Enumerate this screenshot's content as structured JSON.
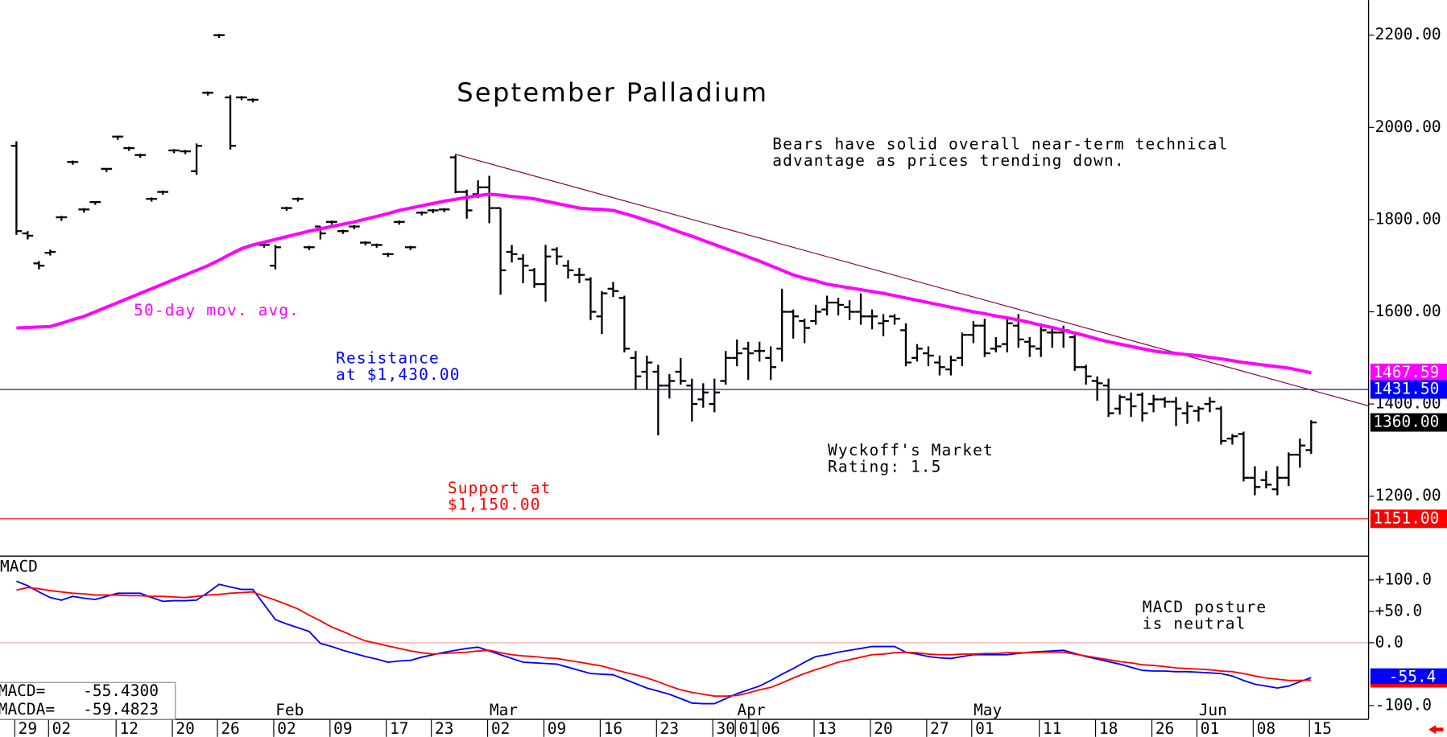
{
  "chart_data": {
    "type": "ohlc",
    "title": "September Palladium",
    "color": "#000000",
    "categories": [
      null,
      "29",
      null,
      null,
      "02",
      null,
      null,
      null,
      null,
      null,
      "12",
      null,
      null,
      null,
      null,
      "20",
      null,
      null,
      null,
      "26",
      null,
      null,
      null,
      null,
      "02",
      null,
      null,
      null,
      null,
      "09",
      null,
      null,
      null,
      null,
      "17",
      null,
      null,
      null,
      "23",
      null,
      null,
      null,
      null,
      "02",
      null,
      null,
      null,
      null,
      "09",
      null,
      null,
      null,
      null,
      "16",
      null,
      null,
      null,
      null,
      "23",
      null,
      null,
      null,
      null,
      "30",
      null,
      "01",
      null,
      "06",
      null,
      null,
      null,
      null,
      "13",
      null,
      null,
      null,
      null,
      "20",
      null,
      null,
      null,
      null,
      "27",
      null,
      null,
      null,
      "01",
      null,
      null,
      null,
      null,
      null,
      "11",
      null,
      null,
      null,
      null,
      "18",
      null,
      null,
      null,
      null,
      "26",
      null,
      null,
      null,
      "01",
      null,
      null,
      null,
      null,
      "08",
      null,
      null,
      null,
      null,
      "15"
    ],
    "months": [
      null,
      null,
      null,
      null,
      null,
      null,
      null,
      null,
      null,
      null,
      null,
      null,
      null,
      null,
      null,
      null,
      null,
      null,
      null,
      null,
      null,
      null,
      null,
      null,
      "Feb",
      null,
      null,
      null,
      null,
      null,
      null,
      null,
      null,
      null,
      null,
      null,
      null,
      null,
      null,
      null,
      null,
      null,
      null,
      "Mar",
      null,
      null,
      null,
      null,
      null,
      null,
      null,
      null,
      null,
      null,
      null,
      null,
      null,
      null,
      null,
      null,
      null,
      null,
      null,
      null,
      null,
      "Apr",
      null,
      null,
      null,
      null,
      null,
      null,
      null,
      null,
      null,
      null,
      null,
      null,
      null,
      null,
      null,
      null,
      null,
      null,
      null,
      null,
      "May",
      null,
      null,
      null,
      null,
      null,
      null,
      null,
      null,
      null,
      null,
      null,
      null,
      null,
      null,
      null,
      null,
      null,
      null,
      null,
      "Jun",
      null,
      null,
      null,
      null,
      null,
      null,
      null,
      null,
      null,
      null,
      null
    ],
    "open": [
      1960,
      1770,
      1705,
      1728,
      1805,
      1925,
      1822,
      1838,
      1910,
      1980,
      1955,
      1940,
      1845,
      1860,
      1950,
      1948,
      1905,
      2075,
      2200,
      2065,
      2065,
      2060,
      1745,
      1700,
      1825,
      1845,
      1740,
      1785,
      1795,
      1775,
      1785,
      1750,
      1745,
      1725,
      1795,
      1740,
      1815,
      1820,
      1822,
      1935,
      1860,
      1855,
      1870,
      1825,
      1730,
      1715,
      1690,
      1660,
      1735,
      1700,
      1680,
      1670,
      1590,
      1650,
      1630,
      1500,
      1470,
      1470,
      1440,
      1470,
      1440,
      1410,
      1400,
      1450,
      1500,
      1520,
      1515,
      1500,
      1520,
      1600,
      1580,
      1580,
      1605,
      1620,
      1610,
      1600,
      1590,
      1575,
      1590,
      1560,
      1500,
      1510,
      1490,
      1475,
      1500,
      1550,
      1570,
      1520,
      1530,
      1570,
      1535,
      1520,
      1555,
      1555,
      1545,
      1480,
      1450,
      1440,
      1390,
      1410,
      1420,
      1400,
      1410,
      1405,
      1380,
      1385,
      1400,
      1390,
      1325,
      1335,
      1240,
      1235,
      1215,
      1240,
      1290,
      1300,
      null
    ],
    "high": [
      1970,
      1775,
      1710,
      1735,
      1808,
      1928,
      1825,
      1840,
      1912,
      1982,
      1958,
      1943,
      1848,
      1863,
      1953,
      1951,
      1965,
      2078,
      2203,
      2070,
      2068,
      2063,
      1748,
      1745,
      1828,
      1848,
      1743,
      1785,
      1798,
      1778,
      1788,
      1753,
      1748,
      1728,
      1798,
      1743,
      1818,
      1823,
      1825,
      1940,
      1865,
      1885,
      1895,
      1825,
      1745,
      1725,
      1695,
      1745,
      1740,
      1712,
      1695,
      1675,
      1645,
      1665,
      1635,
      1515,
      1505,
      1485,
      1465,
      1500,
      1455,
      1445,
      1455,
      1515,
      1540,
      1535,
      1535,
      1525,
      1650,
      1605,
      1585,
      1615,
      1635,
      1630,
      1625,
      1640,
      1605,
      1595,
      1595,
      1575,
      1530,
      1525,
      1505,
      1505,
      1555,
      1580,
      1585,
      1545,
      1585,
      1595,
      1545,
      1575,
      1565,
      1570,
      1550,
      1485,
      1460,
      1455,
      1420,
      1425,
      1425,
      1420,
      1415,
      1415,
      1405,
      1395,
      1415,
      1395,
      1335,
      1340,
      1265,
      1255,
      1265,
      1295,
      1325,
      1365,
      null
    ],
    "low": [
      1770,
      1760,
      1695,
      1725,
      1800,
      1922,
      1818,
      1835,
      1906,
      1976,
      1952,
      1937,
      1842,
      1857,
      1947,
      1945,
      1900,
      2072,
      2197,
      1955,
      2062,
      2057,
      1742,
      1695,
      1822,
      1842,
      1737,
      1760,
      1792,
      1772,
      1782,
      1747,
      1742,
      1722,
      1792,
      1737,
      1812,
      1817,
      1819,
      1860,
      1805,
      1850,
      1795,
      1640,
      1710,
      1665,
      1655,
      1625,
      1705,
      1675,
      1665,
      1585,
      1555,
      1635,
      1515,
      1435,
      1435,
      1335,
      1415,
      1445,
      1365,
      1395,
      1385,
      1445,
      1485,
      1455,
      1495,
      1455,
      1495,
      1545,
      1535,
      1575,
      1595,
      1595,
      1585,
      1575,
      1565,
      1550,
      1575,
      1485,
      1495,
      1485,
      1465,
      1465,
      1485,
      1535,
      1505,
      1515,
      1515,
      1525,
      1505,
      1505,
      1525,
      1525,
      1475,
      1445,
      1410,
      1375,
      1380,
      1375,
      1365,
      1385,
      1395,
      1355,
      1360,
      1365,
      1385,
      1315,
      1315,
      1235,
      1205,
      1220,
      1205,
      1225,
      1265,
      1295,
      null
    ],
    "close": [
      1775,
      1765,
      1700,
      1730,
      1805,
      1925,
      1822,
      1838,
      1910,
      1980,
      1955,
      1940,
      1845,
      1860,
      1950,
      1948,
      1960,
      2075,
      2200,
      1960,
      2065,
      2060,
      1745,
      1740,
      1825,
      1845,
      1740,
      1770,
      1795,
      1775,
      1785,
      1750,
      1745,
      1725,
      1795,
      1740,
      1815,
      1820,
      1822,
      1860,
      1820,
      1870,
      1825,
      1690,
      1725,
      1700,
      1660,
      1720,
      1720,
      1690,
      1680,
      1600,
      1640,
      1645,
      1520,
      1460,
      1490,
      1440,
      1450,
      1450,
      1400,
      1425,
      1425,
      1500,
      1510,
      1510,
      1515,
      1480,
      1600,
      1590,
      1565,
      1600,
      1620,
      1615,
      1600,
      1590,
      1590,
      1580,
      1585,
      1490,
      1520,
      1505,
      1480,
      1495,
      1550,
      1570,
      1510,
      1525,
      1575,
      1540,
      1525,
      1560,
      1555,
      1560,
      1480,
      1460,
      1445,
      1380,
      1415,
      1395,
      1380,
      1410,
      1405,
      1390,
      1395,
      1390,
      1405,
      1320,
      1330,
      1240,
      1220,
      1225,
      1240,
      1290,
      1310,
      1360,
      null
    ],
    "lines": [
      {
        "name": "50-day mov. avg.",
        "color": "#ff00ff",
        "values": [
          1565,
          1566,
          1567,
          1568,
          1575,
          1583,
          1590,
          1600,
          1610,
          1620,
          1630,
          1640,
          1650,
          1660,
          1670,
          1680,
          1690,
          1700,
          1712,
          1725,
          1737,
          1745,
          1751,
          1757,
          1763,
          1769,
          1775,
          1780,
          1785,
          1790,
          1795,
          1801,
          1807,
          1813,
          1820,
          1825,
          1830,
          1835,
          1840,
          1844,
          1848,
          1852,
          1855,
          1853,
          1850,
          1848,
          1845,
          1840,
          1835,
          1830,
          1825,
          1823,
          1822,
          1820,
          1813,
          1806,
          1798,
          1790,
          1781,
          1772,
          1764,
          1755,
          1746,
          1737,
          1728,
          1719,
          1710,
          1700,
          1690,
          1680,
          1673,
          1667,
          1660,
          1656,
          1652,
          1648,
          1644,
          1640,
          1635,
          1630,
          1625,
          1620,
          1615,
          1610,
          1605,
          1600,
          1596,
          1591,
          1587,
          1582,
          1577,
          1571,
          1566,
          1560,
          1554,
          1548,
          1541,
          1535,
          1530,
          1525,
          1520,
          1515,
          1512,
          1510,
          1507,
          1505,
          1501,
          1498,
          1494,
          1490,
          1487,
          1484,
          1481,
          1478,
          1473,
          1467.59,
          null
        ]
      }
    ],
    "ylim": [
      1070,
      2276
    ],
    "yticks": [
      {
        "value": 2200,
        "label": "2200.00"
      },
      {
        "value": 2000,
        "label": "2000.00"
      },
      {
        "value": 1800,
        "label": "1800.00"
      },
      {
        "value": 1600,
        "label": "1600.00"
      },
      {
        "value": 1400,
        "label": "1400.00"
      },
      {
        "value": 1200,
        "label": "1200.00"
      }
    ],
    "price_markers": [
      {
        "value": 1467.59,
        "label": "1467.59",
        "color": "#ff00ff",
        "line": false
      },
      {
        "value": 1431.5,
        "label": "1431.50",
        "color": "#0000ff",
        "line": true,
        "line_color": "#000080"
      },
      {
        "value": 1360,
        "label": "1360.00",
        "color": "#000000",
        "line": false
      },
      {
        "value": 1151,
        "label": "1151.00",
        "color": "#ff0000",
        "line": true,
        "line_color": "#ff0000"
      }
    ],
    "annotations": [
      {
        "lines": [
          "Bears have solid overall near-term technical",
          "advantage as prices trending down."
        ]
      },
      {
        "lines": [
          "Resistance",
          "at $1,430.00"
        ]
      },
      {
        "lines": [
          "Support at",
          "$1,150.00"
        ]
      },
      {
        "lines": [
          "Wyckoff's Market",
          "Rating: 1.5"
        ]
      }
    ],
    "macd": {
      "type": "line",
      "title": "MACD",
      "ylim": [
        -122,
        138
      ],
      "yticks": [
        {
          "value": 100,
          "label": "+100.0"
        },
        {
          "value": 50,
          "label": "+50.0"
        },
        {
          "value": 0,
          "label": "0.0"
        },
        {
          "value": -100,
          "label": "-100.0"
        }
      ],
      "series": [
        {
          "name": "MACD=",
          "readout": "-55.4300",
          "color": "#0000ff",
          "values": [
            98,
            91,
            81,
            72,
            68,
            74,
            71,
            69,
            74,
            79,
            79,
            79,
            72,
            66,
            67,
            67,
            68,
            80,
            93,
            89,
            85,
            85,
            61,
            37,
            30,
            24,
            18,
            -1,
            -6,
            -12,
            -17,
            -22,
            -26,
            -31,
            -29,
            -28,
            -23,
            -19,
            -15,
            -12,
            -9,
            -7,
            -13,
            -19,
            -25,
            -31,
            -32,
            -33,
            -34,
            -39,
            -44,
            -49,
            -50,
            -51,
            -58,
            -65,
            -72,
            -77,
            -82,
            -89,
            -96,
            -97,
            -97,
            -89,
            -81,
            -75,
            -69,
            -60,
            -50,
            -41,
            -31,
            -22,
            -19,
            -15,
            -12,
            -9,
            -6,
            -6,
            -6,
            -15,
            -18,
            -22,
            -24,
            -25,
            -22,
            -19,
            -19,
            -19,
            -19,
            -17,
            -15,
            -14,
            -13,
            -12,
            -17,
            -22,
            -26,
            -30,
            -34,
            -39,
            -44,
            -45,
            -45,
            -46,
            -46,
            -47,
            -48,
            -49,
            -53,
            -60,
            -66,
            -69,
            -72,
            -69,
            -62,
            -55.43,
            null
          ]
        },
        {
          "name": "MACDA=",
          "readout": "-59.4823",
          "color": "#ff0000",
          "values": [
            84,
            88,
            86,
            83,
            81,
            79,
            78,
            76,
            76,
            76,
            75,
            75,
            74,
            74,
            73,
            72,
            74,
            76,
            77,
            79,
            80,
            81,
            74,
            68,
            61,
            54,
            44,
            35,
            25,
            18,
            10,
            3,
            -1,
            -5,
            -9,
            -13,
            -16,
            -18,
            -17,
            -16,
            -15,
            -13,
            -12,
            -16,
            -19,
            -21,
            -22,
            -24,
            -25,
            -28,
            -31,
            -34,
            -37,
            -42,
            -47,
            -51,
            -56,
            -62,
            -69,
            -75,
            -79,
            -82,
            -85,
            -85,
            -84,
            -80,
            -75,
            -71,
            -64,
            -56,
            -49,
            -43,
            -37,
            -31,
            -27,
            -23,
            -19,
            -18,
            -16,
            -15,
            -16,
            -18,
            -19,
            -19,
            -18,
            -18,
            -17,
            -17,
            -16,
            -16,
            -16,
            -15,
            -15,
            -15,
            -18,
            -21,
            -24,
            -27,
            -30,
            -32,
            -35,
            -36,
            -38,
            -40,
            -41,
            -42,
            -43,
            -45,
            -46,
            -49,
            -53,
            -56,
            -58,
            -60,
            -60,
            -59.4823,
            null
          ]
        }
      ],
      "markers": [
        {
          "value": -55.43,
          "label": "-55.4",
          "color": "#0000ff"
        },
        {
          "value": -59.4823,
          "color": "#ff0000"
        }
      ],
      "annotations": [
        {
          "lines": [
            "MACD posture",
            "is neutral"
          ]
        }
      ]
    }
  }
}
